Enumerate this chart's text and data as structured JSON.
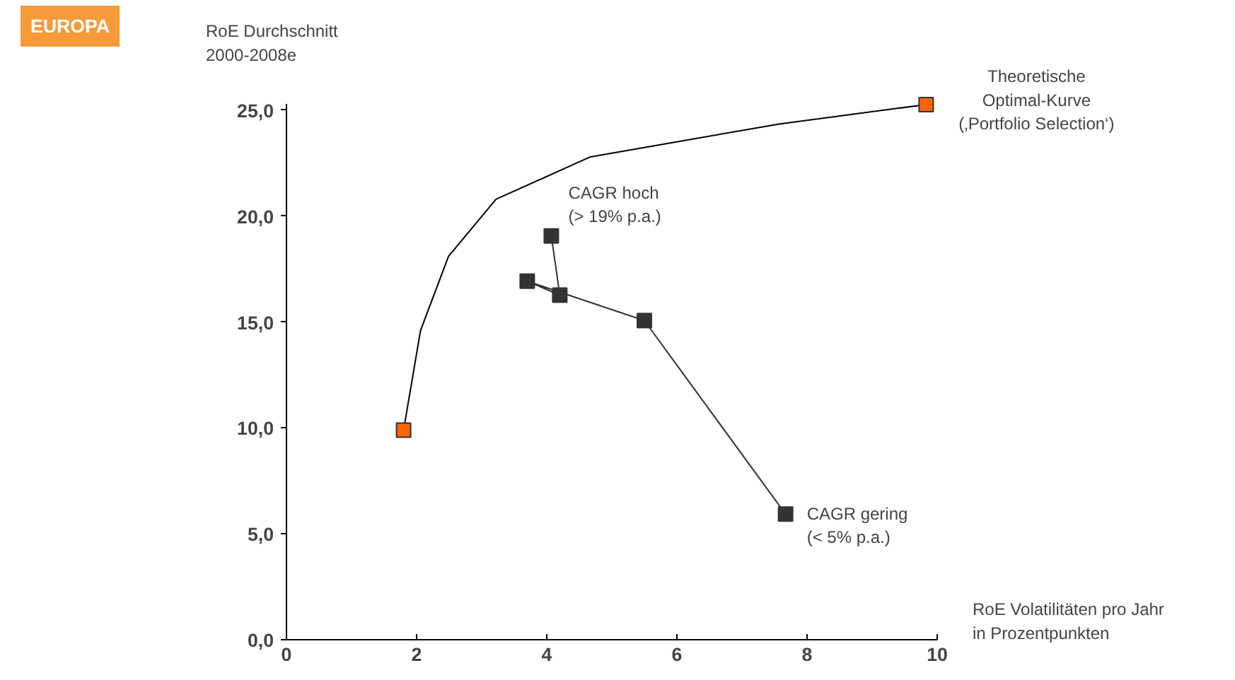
{
  "chart_data": {
    "type": "line",
    "title": "EUROPA",
    "ylabel": "RoE Durchschnitt\n2000-2008e",
    "xlabel": "RoE Volatilitäten pro Jahr\nin Prozentpunkten",
    "xlim": [
      0,
      10
    ],
    "xticks": [
      0,
      2,
      4,
      6,
      8,
      10
    ],
    "ylim": [
      0,
      25.3
    ],
    "yticks": [
      {
        "value": 0,
        "label": "0,0"
      },
      {
        "value": 5,
        "label": "5,0"
      },
      {
        "value": 10,
        "label": "10,0"
      },
      {
        "value": 15,
        "label": "15,0"
      },
      {
        "value": 20,
        "label": "20,0"
      },
      {
        "value": 25,
        "label": "25,0"
      }
    ],
    "grid": false,
    "series": [
      {
        "color": "#000000",
        "marker": "none",
        "x": [
          1.8,
          2.06,
          2.49,
          3.22,
          4.67,
          7.57,
          9.83
        ],
        "values": [
          9.9,
          14.6,
          18.1,
          20.8,
          22.8,
          24.35,
          25.27
        ]
      },
      {
        "type": "scatter",
        "color": "#ff6600",
        "marker": "square",
        "x": [
          1.8,
          9.83
        ],
        "values": [
          9.9,
          25.27
        ]
      },
      {
        "color": "#333333",
        "marker": "square",
        "x": [
          4.07,
          4.2,
          3.7,
          5.5,
          7.67
        ],
        "values": [
          19.07,
          16.27,
          16.93,
          15.07,
          5.93
        ]
      }
    ],
    "annotations": [
      {
        "text": "Theoretische\nOptimal-Kurve\n(‚Portfolio Selection‘)",
        "x": 9.83,
        "y": 25.27
      },
      {
        "text": "CAGR hoch\n(> 19% p.a.)",
        "x": 4.07,
        "y": 19.07
      },
      {
        "text": "CAGR gering\n(< 5% p.a.)",
        "x": 7.67,
        "y": 5.93
      }
    ]
  }
}
